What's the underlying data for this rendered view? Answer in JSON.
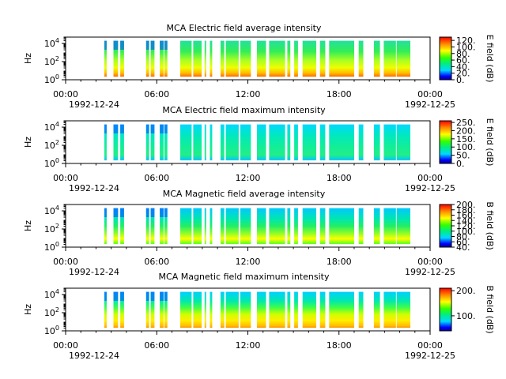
{
  "chart_data": [
    {
      "type": "heatmap",
      "title": "MCA  Electric field average intensity",
      "ylabel": "Hz",
      "yscale": "log",
      "ylim": [
        1,
        50000
      ],
      "y_ticks": [
        {
          "base": "10",
          "exp": "0"
        },
        {
          "base": "10",
          "exp": "2"
        },
        {
          "base": "10",
          "exp": "4"
        }
      ],
      "x_ticks": [
        "00:00",
        "06:00",
        "12:00",
        "18:00",
        "00:00"
      ],
      "x_dates": [
        "1992-12-24",
        "1992-12-25"
      ],
      "xlim": [
        "1992-12-24 00:00",
        "1992-12-25 00:00"
      ],
      "colorbar": {
        "label": "E field (dB)",
        "min": 0,
        "max": 130,
        "ticks": [
          "0.",
          "20.",
          "40.",
          "60.",
          "80.",
          "100.",
          "120."
        ],
        "tick_values": [
          0,
          20,
          40,
          60,
          80,
          100,
          120
        ]
      },
      "typical_level_db": 60,
      "x_stripe_hours": [
        [
          2.55,
          2.7
        ],
        [
          3.15,
          3.45
        ],
        [
          3.6,
          3.85
        ],
        [
          5.3,
          5.5
        ],
        [
          5.6,
          5.85
        ],
        [
          6.2,
          6.45
        ],
        [
          6.5,
          6.7
        ],
        [
          7.55,
          8.3
        ],
        [
          8.4,
          8.95
        ],
        [
          9.15,
          9.25
        ],
        [
          9.5,
          9.65
        ],
        [
          10.2,
          10.45
        ],
        [
          10.55,
          11.4
        ],
        [
          11.5,
          12.2
        ],
        [
          12.6,
          13.2
        ],
        [
          13.4,
          14.45
        ],
        [
          14.6,
          14.8
        ],
        [
          15.05,
          15.3
        ],
        [
          15.6,
          16.5
        ],
        [
          16.75,
          17.1
        ],
        [
          17.35,
          19.0
        ],
        [
          19.3,
          19.6
        ],
        [
          20.3,
          20.7
        ],
        [
          20.95,
          21.75
        ],
        [
          21.8,
          22.7
        ]
      ]
    },
    {
      "type": "heatmap",
      "title": "MCA  Electric field maximum intensity",
      "ylabel": "Hz",
      "yscale": "log",
      "ylim": [
        1,
        50000
      ],
      "y_ticks": [
        {
          "base": "10",
          "exp": "0"
        },
        {
          "base": "10",
          "exp": "2"
        },
        {
          "base": "10",
          "exp": "4"
        }
      ],
      "x_ticks": [
        "00:00",
        "06:00",
        "12:00",
        "18:00",
        "00:00"
      ],
      "x_dates": [
        "1992-12-24",
        "1992-12-25"
      ],
      "xlim": [
        "1992-12-24 00:00",
        "1992-12-25 00:00"
      ],
      "colorbar": {
        "label": "E field (dB)",
        "min": 0,
        "max": 260,
        "ticks": [
          "0.",
          "50.",
          "100.",
          "150.",
          "200.",
          "250."
        ],
        "tick_values": [
          0,
          50,
          100,
          150,
          200,
          250
        ]
      },
      "typical_level_db": 110,
      "x_stripe_hours": [
        [
          2.55,
          2.7
        ],
        [
          3.15,
          3.45
        ],
        [
          3.6,
          3.85
        ],
        [
          5.3,
          5.5
        ],
        [
          5.6,
          5.85
        ],
        [
          6.2,
          6.45
        ],
        [
          6.5,
          6.7
        ],
        [
          7.55,
          8.3
        ],
        [
          8.4,
          8.95
        ],
        [
          9.15,
          9.25
        ],
        [
          9.5,
          9.65
        ],
        [
          10.2,
          10.45
        ],
        [
          10.55,
          11.4
        ],
        [
          11.5,
          12.2
        ],
        [
          12.6,
          13.2
        ],
        [
          13.4,
          14.45
        ],
        [
          14.6,
          14.8
        ],
        [
          15.05,
          15.3
        ],
        [
          15.6,
          16.5
        ],
        [
          16.75,
          17.1
        ],
        [
          17.35,
          19.0
        ],
        [
          19.3,
          19.6
        ],
        [
          20.3,
          20.7
        ],
        [
          20.95,
          21.75
        ],
        [
          21.8,
          22.7
        ]
      ]
    },
    {
      "type": "heatmap",
      "title": "MCA  Magnetic field average intensity",
      "ylabel": "Hz",
      "yscale": "log",
      "ylim": [
        1,
        50000
      ],
      "y_ticks": [
        {
          "base": "10",
          "exp": "0"
        },
        {
          "base": "10",
          "exp": "2"
        },
        {
          "base": "10",
          "exp": "4"
        }
      ],
      "x_ticks": [
        "00:00",
        "06:00",
        "12:00",
        "18:00",
        "00:00"
      ],
      "x_dates": [
        "1992-12-24",
        "1992-12-25"
      ],
      "xlim": [
        "1992-12-24 00:00",
        "1992-12-25 00:00"
      ],
      "colorbar": {
        "label": "B field (dB)",
        "min": 40,
        "max": 200,
        "ticks": [
          "40.",
          "60.",
          "80.",
          "100.",
          "120.",
          "140.",
          "160.",
          "180.",
          "200."
        ],
        "tick_values": [
          40,
          60,
          80,
          100,
          120,
          140,
          160,
          180,
          200
        ]
      },
      "typical_level_db": 110,
      "x_stripe_hours": [
        [
          2.55,
          2.7
        ],
        [
          3.15,
          3.45
        ],
        [
          3.6,
          3.85
        ],
        [
          5.3,
          5.5
        ],
        [
          5.6,
          5.85
        ],
        [
          6.2,
          6.45
        ],
        [
          6.5,
          6.7
        ],
        [
          7.55,
          8.3
        ],
        [
          8.4,
          8.95
        ],
        [
          9.15,
          9.25
        ],
        [
          9.5,
          9.65
        ],
        [
          10.2,
          10.45
        ],
        [
          10.55,
          11.4
        ],
        [
          11.5,
          12.2
        ],
        [
          12.6,
          13.2
        ],
        [
          13.4,
          14.45
        ],
        [
          14.6,
          14.8
        ],
        [
          15.05,
          15.3
        ],
        [
          15.6,
          16.5
        ],
        [
          16.75,
          17.1
        ],
        [
          17.35,
          19.0
        ],
        [
          19.3,
          19.6
        ],
        [
          20.3,
          20.7
        ],
        [
          20.95,
          21.75
        ],
        [
          21.8,
          22.7
        ]
      ]
    },
    {
      "type": "heatmap",
      "title": "MCA  Magnetic field maximum intensity",
      "ylabel": "Hz",
      "yscale": "log",
      "ylim": [
        1,
        50000
      ],
      "y_ticks": [
        {
          "base": "10",
          "exp": "0"
        },
        {
          "base": "10",
          "exp": "2"
        },
        {
          "base": "10",
          "exp": "4"
        }
      ],
      "x_ticks": [
        "00:00",
        "06:00",
        "12:00",
        "18:00",
        "00:00"
      ],
      "x_dates": [
        "1992-12-24",
        "1992-12-25"
      ],
      "xlim": [
        "1992-12-24 00:00",
        "1992-12-25 00:00"
      ],
      "colorbar": {
        "label": "B field (dB)",
        "min": 40,
        "max": 210,
        "ticks": [
          "100.",
          "200."
        ],
        "tick_values": [
          100,
          200
        ]
      },
      "typical_level_db": 120,
      "x_stripe_hours": [
        [
          2.55,
          2.7
        ],
        [
          3.15,
          3.45
        ],
        [
          3.6,
          3.85
        ],
        [
          5.3,
          5.5
        ],
        [
          5.6,
          5.85
        ],
        [
          6.2,
          6.45
        ],
        [
          6.5,
          6.7
        ],
        [
          7.55,
          8.3
        ],
        [
          8.4,
          8.95
        ],
        [
          9.15,
          9.25
        ],
        [
          9.5,
          9.65
        ],
        [
          10.2,
          10.45
        ],
        [
          10.55,
          11.4
        ],
        [
          11.5,
          12.2
        ],
        [
          12.6,
          13.2
        ],
        [
          13.4,
          14.45
        ],
        [
          14.6,
          14.8
        ],
        [
          15.05,
          15.3
        ],
        [
          15.6,
          16.5
        ],
        [
          16.75,
          17.1
        ],
        [
          17.35,
          19.0
        ],
        [
          19.3,
          19.6
        ],
        [
          20.3,
          20.7
        ],
        [
          20.95,
          21.75
        ],
        [
          21.8,
          22.7
        ]
      ]
    }
  ]
}
